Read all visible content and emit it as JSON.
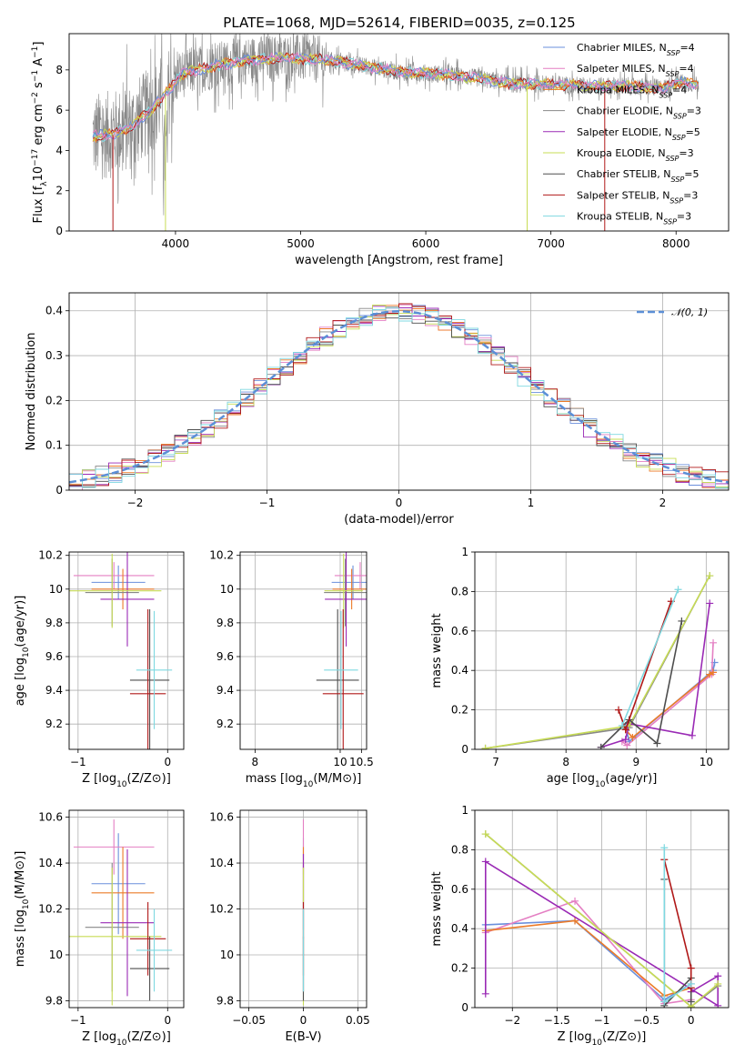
{
  "figure_title": "PLATE=1068, MJD=52614, FIBERID=0035, z=0.125",
  "colors": {
    "Chabrier MILES": "#6a8fdc",
    "Salpeter MILES": "#e47fc3",
    "Kroupa MILES": "#ec7b28",
    "Chabrier ELODIE": "#888888",
    "Salpeter ELODIE": "#9a2ab5",
    "Kroupa ELODIE": "#c7dc55",
    "Chabrier STELIB": "#4d4d4d",
    "Salpeter STELIB": "#b01818",
    "Kroupa STELIB": "#7fd8e0",
    "normal": "#5c8fd6"
  },
  "models": [
    "Chabrier MILES",
    "Salpeter MILES",
    "Kroupa MILES",
    "Chabrier ELODIE",
    "Salpeter ELODIE",
    "Kroupa ELODIE",
    "Chabrier STELIB",
    "Salpeter STELIB",
    "Kroupa STELIB"
  ],
  "chart_data": [
    {
      "id": "spectrum",
      "type": "line",
      "xlabel": "wavelength [Angstrom, rest frame]",
      "ylabel": "Flux [f_λ10^-17 erg cm^-2 s^-1 A^-1]",
      "xlim": [
        3150,
        8420
      ],
      "ylim": [
        0,
        9.8
      ],
      "xticks": [
        4000,
        5000,
        6000,
        7000,
        8000
      ],
      "yticks": [
        0,
        2,
        4,
        6,
        8
      ],
      "legend_position": "upper right",
      "legend": [
        {
          "label": "Chabrier MILES",
          "nssp": 4
        },
        {
          "label": "Salpeter MILES",
          "nssp": 4
        },
        {
          "label": "Kroupa MILES",
          "nssp": 4
        },
        {
          "label": "Chabrier ELODIE",
          "nssp": 3
        },
        {
          "label": "Salpeter ELODIE",
          "nssp": 5
        },
        {
          "label": "Kroupa ELODIE",
          "nssp": 3
        },
        {
          "label": "Chabrier STELIB",
          "nssp": 5
        },
        {
          "label": "Salpeter STELIB",
          "nssp": 3
        },
        {
          "label": "Kroupa STELIB",
          "nssp": 3
        }
      ],
      "data_range": [
        3340,
        8180
      ],
      "continuum": {
        "x": [
          3340,
          3500,
          3650,
          3800,
          3950,
          4050,
          4300,
          4600,
          4900,
          5200,
          5500,
          5800,
          6100,
          6400,
          6700,
          7000,
          7300,
          7600,
          7900,
          8000,
          8200
        ],
        "y": [
          4.7,
          4.8,
          5.2,
          6.0,
          7.0,
          7.8,
          8.2,
          8.5,
          8.6,
          8.5,
          8.2,
          7.9,
          7.8,
          7.6,
          7.3,
          7.3,
          7.2,
          7.2,
          7.1,
          7.4,
          7.3
        ]
      }
    },
    {
      "id": "residuals",
      "type": "step",
      "xlabel": "(data-model)/error",
      "ylabel": "Normed distribution",
      "xlim": [
        -2.5,
        2.5
      ],
      "ylim": [
        0,
        0.44
      ],
      "xticks": [
        -2,
        -1,
        0,
        1,
        2
      ],
      "yticks": [
        0.0,
        0.1,
        0.2,
        0.3,
        0.4
      ],
      "grid": true,
      "bin_width": 0.1,
      "legend": [
        {
          "label": "𝒩(0, 1)"
        }
      ],
      "legend_position": "upper right"
    },
    {
      "id": "age_vs_Z",
      "type": "errorbar",
      "xlabel": "Z [log10(Z/Z⊙)]",
      "ylabel": "age [log10(age/yr)]",
      "xlim": [
        -1.1,
        0.18
      ],
      "ylim": [
        9.05,
        10.22
      ],
      "xticks": [
        -1,
        0
      ],
      "yticks": [
        9.2,
        9.4,
        9.6,
        9.8,
        10.0,
        10.2
      ],
      "grid": true,
      "points": [
        {
          "model": "Chabrier MILES",
          "x": -0.55,
          "xerr": 0.3,
          "y": 10.04,
          "yerr": 0.1
        },
        {
          "model": "Salpeter MILES",
          "x": -0.6,
          "xerr": 0.45,
          "y": 10.08,
          "yerr": 0.08
        },
        {
          "model": "Kroupa MILES",
          "x": -0.5,
          "xerr": 0.35,
          "y": 10.0,
          "yerr": 0.12
        },
        {
          "model": "Chabrier ELODIE",
          "x": -0.62,
          "xerr": 0.3,
          "y": 9.98,
          "yerr": 0.2
        },
        {
          "model": "Salpeter ELODIE",
          "x": -0.45,
          "xerr": 0.3,
          "y": 9.94,
          "yerr": 0.28
        },
        {
          "model": "Kroupa ELODIE",
          "x": -0.62,
          "xerr": 0.55,
          "y": 9.99,
          "yerr": 0.22
        },
        {
          "model": "Chabrier STELIB",
          "x": -0.2,
          "xerr": 0.22,
          "y": 9.46,
          "yerr": 0.42
        },
        {
          "model": "Salpeter STELIB",
          "x": -0.22,
          "xerr": 0.2,
          "y": 9.38,
          "yerr": 0.5
        },
        {
          "model": "Kroupa STELIB",
          "x": -0.15,
          "xerr": 0.2,
          "y": 9.52,
          "yerr": 0.35
        }
      ]
    },
    {
      "id": "age_vs_mass",
      "type": "errorbar",
      "xlabel": "mass [log10(M/M⊙)]",
      "ylabel": "",
      "xlim": [
        7.65,
        10.62
      ],
      "ylim": [
        9.05,
        10.22
      ],
      "xticks": [
        8,
        10,
        10.5
      ],
      "yticks": [
        9.2,
        9.4,
        9.6,
        9.8,
        10.0,
        10.2
      ],
      "grid": true,
      "points": [
        {
          "model": "Chabrier MILES",
          "x": 10.3,
          "xerr": 0.5,
          "y": 10.04,
          "yerr": 0.1
        },
        {
          "model": "Salpeter MILES",
          "x": 10.47,
          "xerr": 0.6,
          "y": 10.08,
          "yerr": 0.08
        },
        {
          "model": "Kroupa MILES",
          "x": 10.27,
          "xerr": 0.45,
          "y": 10.0,
          "yerr": 0.12
        },
        {
          "model": "Chabrier ELODIE",
          "x": 10.12,
          "xerr": 0.5,
          "y": 9.98,
          "yerr": 0.2
        },
        {
          "model": "Salpeter ELODIE",
          "x": 10.14,
          "xerr": 0.5,
          "y": 9.94,
          "yerr": 0.28
        },
        {
          "model": "Kroupa ELODIE",
          "x": 10.08,
          "xerr": 0.45,
          "y": 9.99,
          "yerr": 0.22
        },
        {
          "model": "Chabrier STELIB",
          "x": 9.94,
          "xerr": 0.5,
          "y": 9.46,
          "yerr": 0.42
        },
        {
          "model": "Salpeter STELIB",
          "x": 10.07,
          "xerr": 0.48,
          "y": 9.38,
          "yerr": 0.5
        },
        {
          "model": "Kroupa STELIB",
          "x": 10.02,
          "xerr": 0.4,
          "y": 9.52,
          "yerr": 0.35
        }
      ]
    },
    {
      "id": "weight_vs_age",
      "type": "line",
      "xlabel": "age [log10(age/yr)]",
      "ylabel": "mass weight",
      "xlim": [
        6.7,
        10.32
      ],
      "ylim": [
        0,
        1.0
      ],
      "xticks": [
        7,
        8,
        9,
        10
      ],
      "yticks": [
        0.0,
        0.2,
        0.4,
        0.6,
        0.8,
        1.0
      ],
      "grid": true,
      "series": [
        {
          "model": "Chabrier MILES",
          "x": [
            8.85,
            8.9,
            10.1,
            10.12
          ],
          "y": [
            0.12,
            0.04,
            0.4,
            0.44
          ]
        },
        {
          "model": "Salpeter MILES",
          "x": [
            8.8,
            8.87,
            10.08,
            10.1
          ],
          "y": [
            0.04,
            0.02,
            0.38,
            0.54
          ]
        },
        {
          "model": "Kroupa MILES",
          "x": [
            8.85,
            8.95,
            10.05,
            10.1
          ],
          "y": [
            0.1,
            0.06,
            0.38,
            0.39
          ]
        },
        {
          "model": "Chabrier ELODIE",
          "x": [
            6.85,
            8.9,
            10.05
          ],
          "y": [
            0.005,
            0.11,
            0.88
          ]
        },
        {
          "model": "Salpeter ELODIE",
          "x": [
            8.5,
            8.85,
            8.9,
            9.8,
            10.05
          ],
          "y": [
            0.01,
            0.05,
            0.13,
            0.07,
            0.74
          ]
        },
        {
          "model": "Kroupa ELODIE",
          "x": [
            6.85,
            8.9,
            10.05
          ],
          "y": [
            0.005,
            0.12,
            0.88
          ]
        },
        {
          "model": "Chabrier STELIB",
          "x": [
            8.5,
            8.9,
            9.3,
            9.65
          ],
          "y": [
            0.01,
            0.15,
            0.03,
            0.65
          ]
        },
        {
          "model": "Salpeter STELIB",
          "x": [
            8.75,
            8.85,
            9.5
          ],
          "y": [
            0.2,
            0.1,
            0.75
          ]
        },
        {
          "model": "Kroupa STELIB",
          "x": [
            8.8,
            9.6
          ],
          "y": [
            0.12,
            0.81
          ]
        }
      ]
    },
    {
      "id": "mass_vs_Z",
      "type": "errorbar",
      "xlabel": "Z [log10(Z/Z⊙)]",
      "ylabel": "mass [log10(M/M⊙)]",
      "xlim": [
        -1.1,
        0.18
      ],
      "ylim": [
        9.77,
        10.63
      ],
      "xticks": [
        -1,
        0
      ],
      "yticks": [
        9.8,
        10.0,
        10.2,
        10.4,
        10.6
      ],
      "grid": true,
      "points": [
        {
          "model": "Chabrier MILES",
          "x": -0.55,
          "xerr": 0.3,
          "y": 10.31,
          "yerr": 0.22
        },
        {
          "model": "Salpeter MILES",
          "x": -0.6,
          "xerr": 0.45,
          "y": 10.47,
          "yerr": 0.12
        },
        {
          "model": "Kroupa MILES",
          "x": -0.5,
          "xerr": 0.35,
          "y": 10.27,
          "yerr": 0.2
        },
        {
          "model": "Chabrier ELODIE",
          "x": -0.62,
          "xerr": 0.3,
          "y": 10.12,
          "yerr": 0.28
        },
        {
          "model": "Salpeter ELODIE",
          "x": -0.45,
          "xerr": 0.3,
          "y": 10.14,
          "yerr": 0.32
        },
        {
          "model": "Kroupa ELODIE",
          "x": -0.62,
          "xerr": 0.55,
          "y": 10.08,
          "yerr": 0.3
        },
        {
          "model": "Chabrier STELIB",
          "x": -0.2,
          "xerr": 0.22,
          "y": 9.94,
          "yerr": 0.14
        },
        {
          "model": "Salpeter STELIB",
          "x": -0.22,
          "xerr": 0.2,
          "y": 10.07,
          "yerr": 0.16
        },
        {
          "model": "Kroupa STELIB",
          "x": -0.15,
          "xerr": 0.2,
          "y": 10.02,
          "yerr": 0.18
        }
      ]
    },
    {
      "id": "mass_vs_EBV",
      "type": "errorbar",
      "xlabel": "E(B-V)",
      "ylabel": "",
      "xlim": [
        -0.058,
        0.058
      ],
      "ylim": [
        9.77,
        10.63
      ],
      "xticks": [
        -0.05,
        0.0,
        0.05
      ],
      "yticks": [
        9.8,
        10.0,
        10.2,
        10.4,
        10.6
      ],
      "grid": true,
      "points": [
        {
          "model": "Chabrier MILES",
          "x": 0.0,
          "xerr": 0.0,
          "y": 10.31,
          "yerr": 0.2
        },
        {
          "model": "Salpeter MILES",
          "x": 0.0,
          "xerr": 0.0,
          "y": 10.47,
          "yerr": 0.12
        },
        {
          "model": "Kroupa MILES",
          "x": 0.0,
          "xerr": 0.0,
          "y": 10.27,
          "yerr": 0.2
        },
        {
          "model": "Chabrier ELODIE",
          "x": 0.0,
          "xerr": 0.0,
          "y": 10.12,
          "yerr": 0.28
        },
        {
          "model": "Salpeter ELODIE",
          "x": 0.0,
          "xerr": 0.0,
          "y": 10.14,
          "yerr": 0.3
        },
        {
          "model": "Kroupa ELODIE",
          "x": 0.0,
          "xerr": 0.0,
          "y": 10.08,
          "yerr": 0.3
        },
        {
          "model": "Chabrier STELIB",
          "x": 0.0,
          "xerr": 0.0,
          "y": 9.94,
          "yerr": 0.14
        },
        {
          "model": "Salpeter STELIB",
          "x": 0.0,
          "xerr": 0.0,
          "y": 10.07,
          "yerr": 0.16
        },
        {
          "model": "Kroupa STELIB",
          "x": 0.0,
          "xerr": 0.0,
          "y": 10.02,
          "yerr": 0.18
        }
      ]
    },
    {
      "id": "weight_vs_Z",
      "type": "line",
      "xlabel": "Z [log10(Z/Z⊙)]",
      "ylabel": "mass weight",
      "xlim": [
        -2.42,
        0.42
      ],
      "ylim": [
        0,
        1.0
      ],
      "xticks": [
        -2.0,
        -1.5,
        -1.0,
        -0.5,
        0.0
      ],
      "yticks": [
        0.0,
        0.2,
        0.4,
        0.6,
        0.8,
        1.0
      ],
      "grid": true,
      "series": [
        {
          "model": "Chabrier MILES",
          "x": [
            -2.3,
            -1.3,
            -0.3,
            0.0
          ],
          "y": [
            0.42,
            0.44,
            0.04,
            0.12
          ]
        },
        {
          "model": "Salpeter MILES",
          "x": [
            -2.3,
            -1.3,
            -0.3,
            0.0
          ],
          "y": [
            0.38,
            0.54,
            0.02,
            0.04
          ]
        },
        {
          "model": "Kroupa MILES",
          "x": [
            -2.3,
            -1.3,
            -0.3,
            0.0
          ],
          "y": [
            0.39,
            0.44,
            0.06,
            0.1
          ]
        },
        {
          "model": "Chabrier ELODIE",
          "x": [
            -2.3,
            0.0,
            0.3
          ],
          "y": [
            0.88,
            0.005,
            0.11
          ]
        },
        {
          "model": "Salpeter ELODIE",
          "x": [
            -2.3,
            -2.3,
            0.3,
            0.3,
            0.0
          ],
          "y": [
            0.07,
            0.74,
            0.01,
            0.16,
            0.08
          ]
        },
        {
          "model": "Kroupa ELODIE",
          "x": [
            -2.3,
            0.0,
            0.3
          ],
          "y": [
            0.88,
            0.005,
            0.12
          ]
        },
        {
          "model": "Chabrier STELIB",
          "x": [
            -0.3,
            -0.3,
            0.0,
            0.0
          ],
          "y": [
            0.65,
            0.01,
            0.15,
            0.03
          ]
        },
        {
          "model": "Salpeter STELIB",
          "x": [
            -0.3,
            0.0,
            0.0
          ],
          "y": [
            0.75,
            0.2,
            0.1
          ]
        },
        {
          "model": "Kroupa STELIB",
          "x": [
            -0.3,
            -0.3,
            0.0
          ],
          "y": [
            0.81,
            0.03,
            0.12
          ]
        }
      ]
    }
  ]
}
